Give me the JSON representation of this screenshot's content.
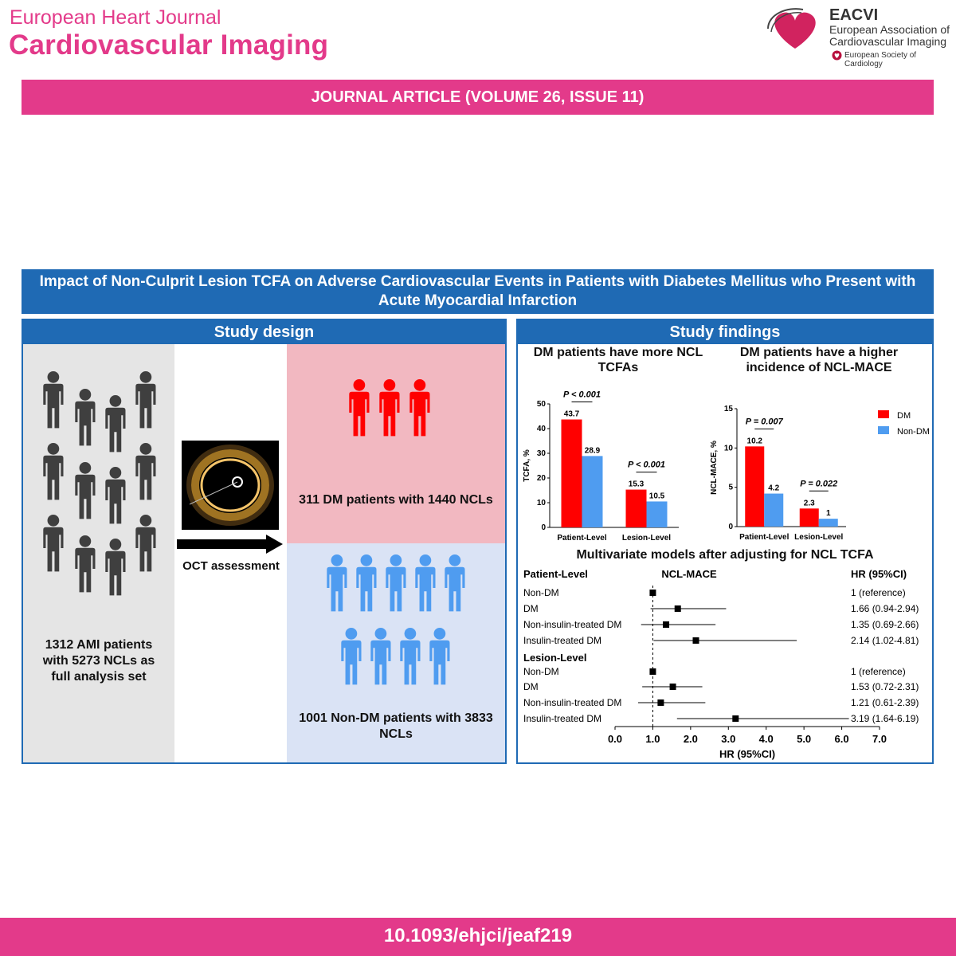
{
  "header": {
    "journal_line1": "European Heart Journal",
    "journal_line2": "Cardiovascular Imaging",
    "eacvi_title": "EACVI",
    "eacvi_sub1": "European Association of",
    "eacvi_sub2": "Cardiovascular Imaging",
    "esc": "European Society of Cardiology",
    "colors": {
      "pink": "#e33a8a",
      "blue": "#1f6ab4"
    }
  },
  "article_banner": "JOURNAL ARTICLE (VOLUME 26, ISSUE 11)",
  "title": "Impact of Non-Culprit Lesion TCFA on Adverse Cardiovascular Events in Patients with Diabetes Mellitus who Present with Acute Myocardial Infarction",
  "design": {
    "header": "Study design",
    "total_label": "1312 AMI patients with 5273 NCLs as full analysis set",
    "oct_label": "OCT assessment",
    "dm_label": "311 DM patients with 1440 NCLs",
    "nondm_label": "1001 Non-DM patients with 3833 NCLs"
  },
  "findings": {
    "header": "Study findings",
    "chart1_title": "DM patients have more NCL TCFAs",
    "chart2_title": "DM patients have a higher incidence of NCL-MACE",
    "forest_title": "Multivariate models after adjusting for NCL TCFA"
  },
  "chart_data": [
    {
      "type": "bar",
      "title": "DM patients have more NCL TCFAs",
      "categories": [
        "Patient-Level",
        "Lesion-Level"
      ],
      "series": [
        {
          "name": "DM",
          "color": "#ff0000",
          "values": [
            43.7,
            15.3
          ]
        },
        {
          "name": "Non-DM",
          "color": "#4f9cf0",
          "values": [
            28.9,
            10.5
          ]
        }
      ],
      "ylabel": "TCFA, %",
      "ylim": [
        0,
        50
      ],
      "yticks": [
        0,
        10,
        20,
        30,
        40,
        50
      ],
      "annotations": [
        "P < 0.001",
        "P < 0.001"
      ]
    },
    {
      "type": "bar",
      "title": "DM patients have a higher incidence of NCL-MACE",
      "categories": [
        "Patient-Level",
        "Lesion-Level"
      ],
      "series": [
        {
          "name": "DM",
          "color": "#ff0000",
          "values": [
            10.2,
            2.3
          ]
        },
        {
          "name": "Non-DM",
          "color": "#4f9cf0",
          "values": [
            4.2,
            1.0
          ]
        }
      ],
      "ylabel": "NCL-MACE, %",
      "ylim": [
        0,
        15
      ],
      "yticks": [
        0,
        5,
        10,
        15
      ],
      "annotations": [
        "P = 0.007",
        "P = 0.022"
      ],
      "legend": [
        "DM",
        "Non-DM"
      ]
    },
    {
      "type": "forest",
      "title": "Multivariate models after adjusting for NCL TCFA",
      "col_group": "Patient-Level",
      "col_outcome": "NCL-MACE",
      "col_hr": "HR (95%CI)",
      "xlabel": "HR (95%CI)",
      "xlim": [
        0,
        7
      ],
      "xticks": [
        "0.0",
        "1.0",
        "2.0",
        "3.0",
        "4.0",
        "5.0",
        "6.0",
        "7.0"
      ],
      "groups": [
        {
          "name": "Patient-Level",
          "rows": [
            {
              "label": "Non-DM",
              "hr": 1.0,
              "lo": 1.0,
              "hi": 1.0,
              "text": "1 (reference)"
            },
            {
              "label": "DM",
              "hr": 1.66,
              "lo": 0.94,
              "hi": 2.94,
              "text": "1.66 (0.94-2.94)"
            },
            {
              "label": "Non-insulin-treated DM",
              "hr": 1.35,
              "lo": 0.69,
              "hi": 2.66,
              "text": "1.35 (0.69-2.66)"
            },
            {
              "label": "Insulin-treated DM",
              "hr": 2.14,
              "lo": 1.02,
              "hi": 4.81,
              "text": "2.14 (1.02-4.81)"
            }
          ]
        },
        {
          "name": "Lesion-Level",
          "rows": [
            {
              "label": "Non-DM",
              "hr": 1.0,
              "lo": 1.0,
              "hi": 1.0,
              "text": "1 (reference)"
            },
            {
              "label": "DM",
              "hr": 1.53,
              "lo": 0.72,
              "hi": 2.31,
              "text": "1.53 (0.72-2.31)"
            },
            {
              "label": "Non-insulin-treated DM",
              "hr": 1.21,
              "lo": 0.61,
              "hi": 2.39,
              "text": "1.21 (0.61-2.39)"
            },
            {
              "label": "Insulin-treated DM",
              "hr": 3.19,
              "lo": 1.64,
              "hi": 6.19,
              "text": "3.19 (1.64-6.19)"
            }
          ]
        }
      ]
    }
  ],
  "footer_doi": "10.1093/ehjci/jeaf219"
}
